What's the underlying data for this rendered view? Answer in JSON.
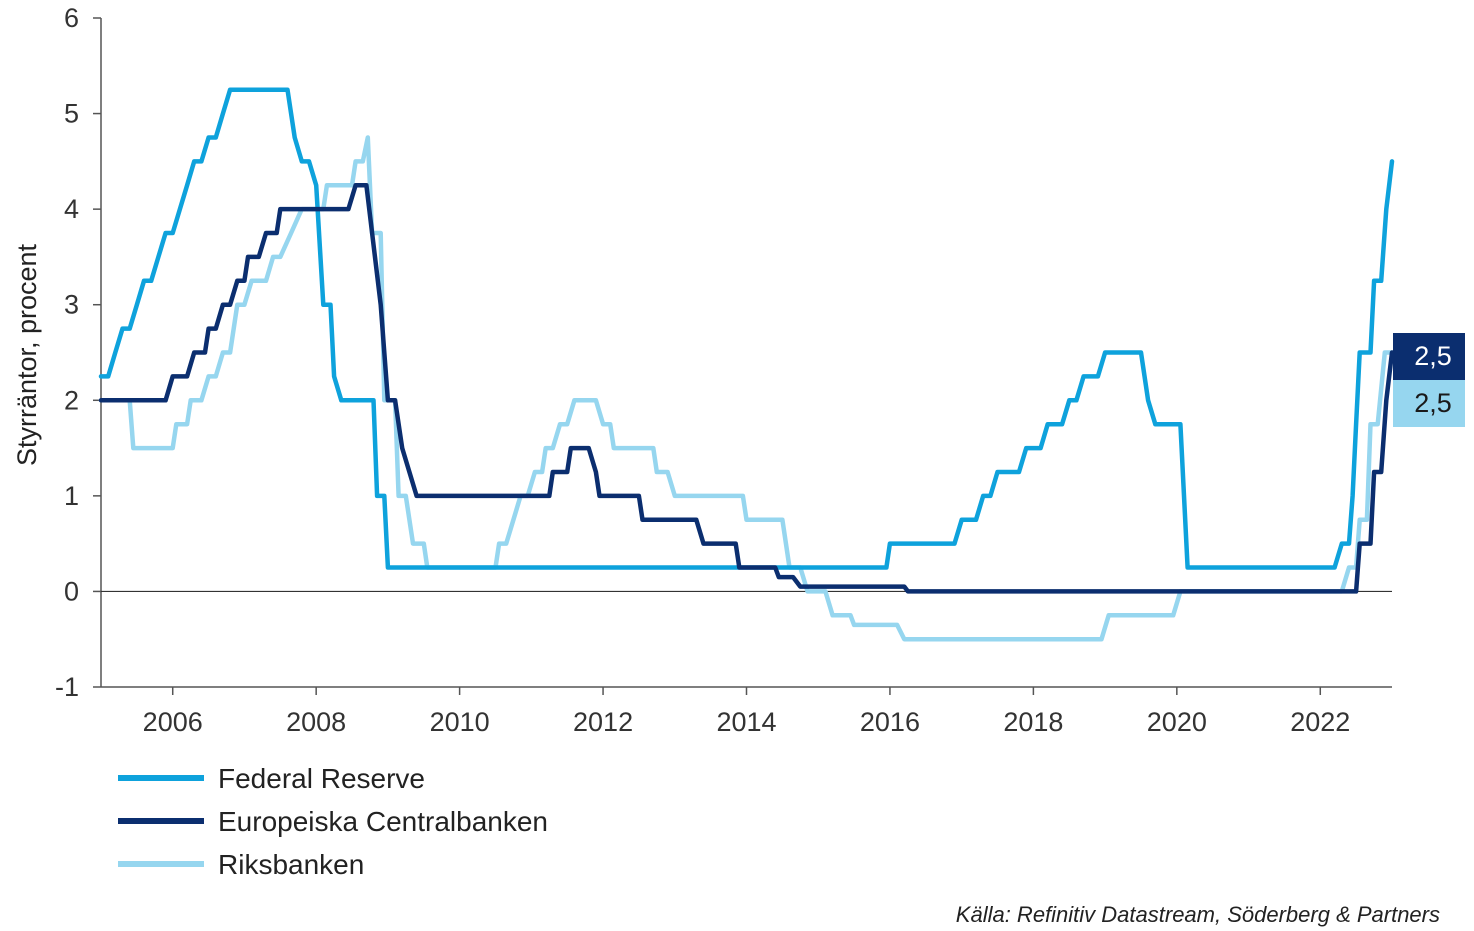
{
  "chart_data": {
    "type": "line",
    "ylabel": "Styrräntor, procent",
    "xlabel": "",
    "xlim": [
      2005.0,
      2023.0
    ],
    "ylim": [
      -1,
      6
    ],
    "yticks": [
      -1,
      0,
      1,
      2,
      3,
      4,
      5,
      6
    ],
    "xticks": [
      2006,
      2008,
      2010,
      2012,
      2014,
      2016,
      2018,
      2020,
      2022
    ],
    "grid": false,
    "zero_line": true,
    "legend_position": "bottom-left",
    "series": [
      {
        "name": "Federal Reserve",
        "color": "#0ea2dc",
        "points": [
          [
            2005.0,
            2.25
          ],
          [
            2005.1,
            2.25
          ],
          [
            2005.2,
            2.5
          ],
          [
            2005.3,
            2.75
          ],
          [
            2005.4,
            2.75
          ],
          [
            2005.5,
            3.0
          ],
          [
            2005.6,
            3.25
          ],
          [
            2005.7,
            3.25
          ],
          [
            2005.8,
            3.5
          ],
          [
            2005.9,
            3.75
          ],
          [
            2006.0,
            3.75
          ],
          [
            2006.1,
            4.0
          ],
          [
            2006.2,
            4.25
          ],
          [
            2006.3,
            4.5
          ],
          [
            2006.4,
            4.5
          ],
          [
            2006.5,
            4.75
          ],
          [
            2006.6,
            4.75
          ],
          [
            2006.7,
            5.0
          ],
          [
            2006.8,
            5.25
          ],
          [
            2007.6,
            5.25
          ],
          [
            2007.7,
            4.75
          ],
          [
            2007.8,
            4.5
          ],
          [
            2007.9,
            4.5
          ],
          [
            2008.0,
            4.25
          ],
          [
            2008.1,
            3.0
          ],
          [
            2008.2,
            3.0
          ],
          [
            2008.25,
            2.25
          ],
          [
            2008.35,
            2.0
          ],
          [
            2008.8,
            2.0
          ],
          [
            2008.85,
            1.0
          ],
          [
            2008.95,
            1.0
          ],
          [
            2009.0,
            0.25
          ],
          [
            2015.95,
            0.25
          ],
          [
            2016.0,
            0.5
          ],
          [
            2016.9,
            0.5
          ],
          [
            2017.0,
            0.75
          ],
          [
            2017.2,
            0.75
          ],
          [
            2017.3,
            1.0
          ],
          [
            2017.4,
            1.0
          ],
          [
            2017.5,
            1.25
          ],
          [
            2017.8,
            1.25
          ],
          [
            2017.9,
            1.5
          ],
          [
            2018.1,
            1.5
          ],
          [
            2018.2,
            1.75
          ],
          [
            2018.4,
            1.75
          ],
          [
            2018.5,
            2.0
          ],
          [
            2018.6,
            2.0
          ],
          [
            2018.7,
            2.25
          ],
          [
            2018.9,
            2.25
          ],
          [
            2019.0,
            2.5
          ],
          [
            2019.5,
            2.5
          ],
          [
            2019.6,
            2.0
          ],
          [
            2019.7,
            1.75
          ],
          [
            2020.05,
            1.75
          ],
          [
            2020.15,
            0.25
          ],
          [
            2022.2,
            0.25
          ],
          [
            2022.3,
            0.5
          ],
          [
            2022.4,
            0.5
          ],
          [
            2022.45,
            1.0
          ],
          [
            2022.5,
            1.75
          ],
          [
            2022.55,
            2.5
          ],
          [
            2022.7,
            2.5
          ],
          [
            2022.75,
            3.25
          ],
          [
            2022.85,
            3.25
          ],
          [
            2022.92,
            4.0
          ],
          [
            2023.0,
            4.5
          ]
        ]
      },
      {
        "name": "Europeiska Centralbanken",
        "color": "#0b2e6f",
        "points": [
          [
            2005.0,
            2.0
          ],
          [
            2005.9,
            2.0
          ],
          [
            2006.0,
            2.25
          ],
          [
            2006.2,
            2.25
          ],
          [
            2006.3,
            2.5
          ],
          [
            2006.45,
            2.5
          ],
          [
            2006.5,
            2.75
          ],
          [
            2006.6,
            2.75
          ],
          [
            2006.7,
            3.0
          ],
          [
            2006.8,
            3.0
          ],
          [
            2006.9,
            3.25
          ],
          [
            2007.0,
            3.25
          ],
          [
            2007.05,
            3.5
          ],
          [
            2007.2,
            3.5
          ],
          [
            2007.3,
            3.75
          ],
          [
            2007.45,
            3.75
          ],
          [
            2007.5,
            4.0
          ],
          [
            2008.45,
            4.0
          ],
          [
            2008.55,
            4.25
          ],
          [
            2008.7,
            4.25
          ],
          [
            2008.78,
            3.75
          ],
          [
            2008.9,
            3.0
          ],
          [
            2009.0,
            2.0
          ],
          [
            2009.1,
            2.0
          ],
          [
            2009.2,
            1.5
          ],
          [
            2009.3,
            1.25
          ],
          [
            2009.4,
            1.0
          ],
          [
            2011.25,
            1.0
          ],
          [
            2011.3,
            1.25
          ],
          [
            2011.5,
            1.25
          ],
          [
            2011.55,
            1.5
          ],
          [
            2011.8,
            1.5
          ],
          [
            2011.9,
            1.25
          ],
          [
            2011.95,
            1.0
          ],
          [
            2012.5,
            1.0
          ],
          [
            2012.55,
            0.75
          ],
          [
            2013.3,
            0.75
          ],
          [
            2013.4,
            0.5
          ],
          [
            2013.85,
            0.5
          ],
          [
            2013.9,
            0.25
          ],
          [
            2014.4,
            0.25
          ],
          [
            2014.45,
            0.15
          ],
          [
            2014.65,
            0.15
          ],
          [
            2014.75,
            0.05
          ],
          [
            2016.2,
            0.05
          ],
          [
            2016.25,
            0.0
          ],
          [
            2022.5,
            0.0
          ],
          [
            2022.55,
            0.5
          ],
          [
            2022.7,
            0.5
          ],
          [
            2022.75,
            1.25
          ],
          [
            2022.85,
            1.25
          ],
          [
            2022.92,
            2.0
          ],
          [
            2023.0,
            2.5
          ]
        ]
      },
      {
        "name": "Riksbanken",
        "color": "#96d6ef",
        "points": [
          [
            2005.0,
            2.0
          ],
          [
            2005.4,
            2.0
          ],
          [
            2005.45,
            1.5
          ],
          [
            2006.0,
            1.5
          ],
          [
            2006.05,
            1.75
          ],
          [
            2006.2,
            1.75
          ],
          [
            2006.25,
            2.0
          ],
          [
            2006.4,
            2.0
          ],
          [
            2006.5,
            2.25
          ],
          [
            2006.6,
            2.25
          ],
          [
            2006.7,
            2.5
          ],
          [
            2006.8,
            2.5
          ],
          [
            2006.9,
            3.0
          ],
          [
            2007.0,
            3.0
          ],
          [
            2007.1,
            3.25
          ],
          [
            2007.3,
            3.25
          ],
          [
            2007.4,
            3.5
          ],
          [
            2007.5,
            3.5
          ],
          [
            2007.65,
            3.75
          ],
          [
            2007.8,
            4.0
          ],
          [
            2008.1,
            4.0
          ],
          [
            2008.15,
            4.25
          ],
          [
            2008.5,
            4.25
          ],
          [
            2008.55,
            4.5
          ],
          [
            2008.65,
            4.5
          ],
          [
            2008.72,
            4.75
          ],
          [
            2008.78,
            3.75
          ],
          [
            2008.9,
            3.75
          ],
          [
            2008.95,
            2.0
          ],
          [
            2009.1,
            2.0
          ],
          [
            2009.15,
            1.0
          ],
          [
            2009.25,
            1.0
          ],
          [
            2009.35,
            0.5
          ],
          [
            2009.5,
            0.5
          ],
          [
            2009.55,
            0.25
          ],
          [
            2010.5,
            0.25
          ],
          [
            2010.55,
            0.5
          ],
          [
            2010.65,
            0.5
          ],
          [
            2010.75,
            0.75
          ],
          [
            2010.85,
            1.0
          ],
          [
            2010.95,
            1.0
          ],
          [
            2011.05,
            1.25
          ],
          [
            2011.15,
            1.25
          ],
          [
            2011.2,
            1.5
          ],
          [
            2011.3,
            1.5
          ],
          [
            2011.4,
            1.75
          ],
          [
            2011.5,
            1.75
          ],
          [
            2011.6,
            2.0
          ],
          [
            2011.9,
            2.0
          ],
          [
            2012.0,
            1.75
          ],
          [
            2012.1,
            1.75
          ],
          [
            2012.15,
            1.5
          ],
          [
            2012.7,
            1.5
          ],
          [
            2012.75,
            1.25
          ],
          [
            2012.9,
            1.25
          ],
          [
            2013.0,
            1.0
          ],
          [
            2013.95,
            1.0
          ],
          [
            2014.0,
            0.75
          ],
          [
            2014.5,
            0.75
          ],
          [
            2014.6,
            0.25
          ],
          [
            2014.75,
            0.25
          ],
          [
            2014.85,
            0.0
          ],
          [
            2015.1,
            0.0
          ],
          [
            2015.2,
            -0.25
          ],
          [
            2015.45,
            -0.25
          ],
          [
            2015.5,
            -0.35
          ],
          [
            2016.1,
            -0.35
          ],
          [
            2016.2,
            -0.5
          ],
          [
            2018.95,
            -0.5
          ],
          [
            2019.05,
            -0.25
          ],
          [
            2019.95,
            -0.25
          ],
          [
            2020.05,
            0.0
          ],
          [
            2022.3,
            0.0
          ],
          [
            2022.4,
            0.25
          ],
          [
            2022.5,
            0.25
          ],
          [
            2022.55,
            0.75
          ],
          [
            2022.65,
            0.75
          ],
          [
            2022.7,
            1.75
          ],
          [
            2022.8,
            1.75
          ],
          [
            2022.9,
            2.5
          ],
          [
            2023.0,
            2.5
          ]
        ]
      }
    ],
    "end_labels": [
      {
        "text": "2,5",
        "series": "Europeiska Centralbanken",
        "bg": "#0b2e6f",
        "fg": "#ffffff"
      },
      {
        "text": "2,5",
        "series": "Riksbanken",
        "bg": "#96d6ef",
        "fg": "#1a1a1a"
      }
    ],
    "source": "Källa: Refinitiv Datastream, Söderberg & Partners"
  }
}
